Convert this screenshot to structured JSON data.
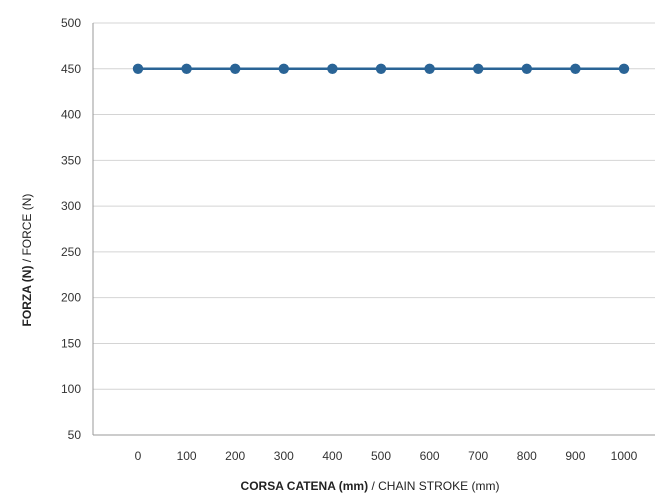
{
  "chart_data": {
    "type": "line",
    "x": [
      0,
      100,
      200,
      300,
      400,
      500,
      600,
      700,
      800,
      900,
      1000
    ],
    "series": [
      {
        "values": [
          450,
          450,
          450,
          450,
          450,
          450,
          450,
          450,
          450,
          450,
          450
        ]
      }
    ],
    "xlabel": {
      "main": "CORSA CATENA (mm)",
      "secondary": " / CHAIN STROKE (mm)"
    },
    "ylabel": {
      "main": "FORZA (N)",
      "secondary": " /  FORCE (N)"
    },
    "ylim": [
      50,
      500
    ],
    "yticks": [
      50,
      100,
      150,
      200,
      250,
      300,
      350,
      400,
      450,
      500
    ],
    "xticks": [
      0,
      100,
      200,
      300,
      400,
      500,
      600,
      700,
      800,
      900,
      1000
    ],
    "grid": "horizontal",
    "colors": {
      "series": "#2a6496",
      "grid": "#d4d4d4",
      "axis": "#999999"
    }
  }
}
